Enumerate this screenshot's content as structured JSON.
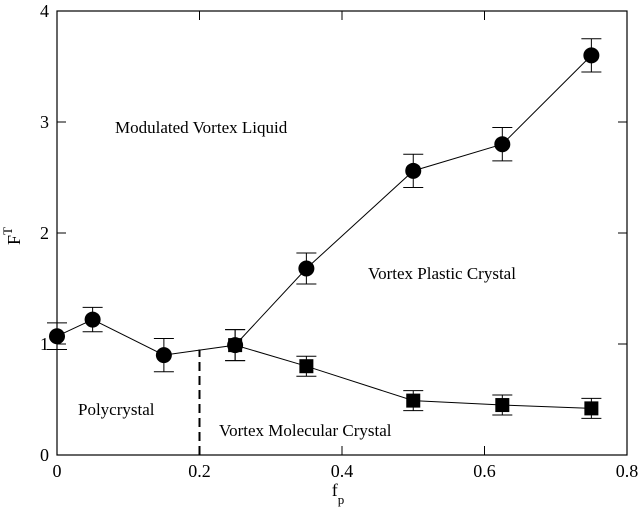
{
  "chart_data": {
    "type": "line",
    "xlabel": {
      "text": "f",
      "subscript": "p"
    },
    "ylabel": {
      "text": "F",
      "superscript": "T"
    },
    "xlim": [
      0,
      0.8
    ],
    "xticks": [
      0,
      0.2,
      0.4,
      0.6,
      0.8
    ],
    "ylim": [
      0,
      4
    ],
    "yticks": [
      0,
      1,
      2,
      3,
      4
    ],
    "color": "#000000",
    "series": [
      {
        "marker": "circle",
        "x": [
          0,
          0.05,
          0.15,
          0.25,
          0.35,
          0.5,
          0.625,
          0.75
        ],
        "values": [
          1.07,
          1.22,
          0.9,
          0.99,
          1.68,
          2.56,
          2.8,
          3.6
        ],
        "errors": [
          0.12,
          0.11,
          0.15,
          0.14,
          0.14,
          0.15,
          0.15,
          0.15
        ]
      },
      {
        "marker": "square",
        "x": [
          0.25,
          0.35,
          0.5,
          0.625,
          0.75
        ],
        "values": [
          0.99,
          0.8,
          0.49,
          0.45,
          0.42
        ],
        "errors": [
          0.14,
          0.09,
          0.09,
          0.09,
          0.09
        ]
      }
    ],
    "dashed_line": {
      "x": 0.2,
      "y": [
        0,
        0.95
      ]
    },
    "annotations": [
      "Modulated Vortex Liquid",
      "Vortex Plastic Crystal",
      "Polycrystal",
      "Vortex Molecular Crystal"
    ]
  }
}
